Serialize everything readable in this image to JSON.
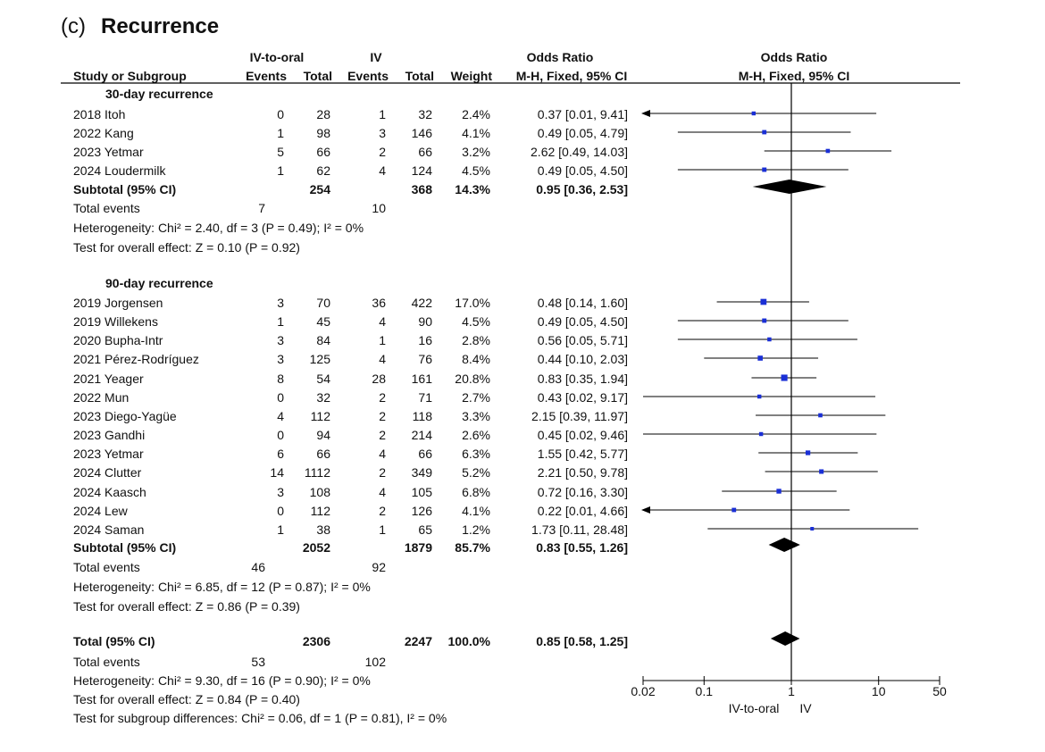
{
  "figure": {
    "panel_label": "(c)",
    "title": "Recurrence"
  },
  "header": {
    "group1": "IV-to-oral",
    "group2": "IV",
    "or_label": "Odds Ratio",
    "or_method": "M-H, Fixed, 95% CI",
    "plot_label": "Odds Ratio",
    "plot_method": "M-H, Fixed, 95% CI",
    "study_col": "Study or Subgroup",
    "events1": "Events",
    "total1": "Total",
    "events2": "Events",
    "total2": "Total",
    "weight": "Weight"
  },
  "subgroups": [
    {
      "name": "30-day recurrence",
      "studies": [
        {
          "study": "2018 Itoh",
          "e1": "0",
          "t1": "28",
          "e2": "1",
          "t2": "32",
          "weight": "2.4%",
          "ci_text": "0.37 [0.01, 9.41]"
        },
        {
          "study": "2022 Kang",
          "e1": "1",
          "t1": "98",
          "e2": "3",
          "t2": "146",
          "weight": "4.1%",
          "ci_text": "0.49 [0.05, 4.79]"
        },
        {
          "study": "2023 Yetmar",
          "e1": "5",
          "t1": "66",
          "e2": "2",
          "t2": "66",
          "weight": "3.2%",
          "ci_text": "2.62 [0.49, 14.03]"
        },
        {
          "study": "2024 Loudermilk",
          "e1": "1",
          "t1": "62",
          "e2": "4",
          "t2": "124",
          "weight": "4.5%",
          "ci_text": "0.49 [0.05, 4.50]"
        }
      ],
      "subtotal": {
        "label": "Subtotal (95% CI)",
        "t1": "254",
        "t2": "368",
        "weight": "14.3%",
        "ci_text": "0.95 [0.36, 2.53]"
      },
      "total_events": {
        "label": "Total events",
        "e1": "7",
        "e2": "10"
      },
      "heterogeneity": "Heterogeneity: Chi² = 2.40, df = 3 (P = 0.49); I² = 0%",
      "overall": "Test for overall effect: Z = 0.10 (P = 0.92)"
    },
    {
      "name": "90-day recurrence",
      "studies": [
        {
          "study": "2019 Jorgensen",
          "e1": "3",
          "t1": "70",
          "e2": "36",
          "t2": "422",
          "weight": "17.0%",
          "ci_text": "0.48 [0.14, 1.60]"
        },
        {
          "study": "2019 Willekens",
          "e1": "1",
          "t1": "45",
          "e2": "4",
          "t2": "90",
          "weight": "4.5%",
          "ci_text": "0.49 [0.05, 4.50]"
        },
        {
          "study": "2020 Bupha-Intr",
          "e1": "3",
          "t1": "84",
          "e2": "1",
          "t2": "16",
          "weight": "2.8%",
          "ci_text": "0.56 [0.05, 5.71]"
        },
        {
          "study": "2021 Pérez-Rodríguez",
          "e1": "3",
          "t1": "125",
          "e2": "4",
          "t2": "76",
          "weight": "8.4%",
          "ci_text": "0.44 [0.10, 2.03]"
        },
        {
          "study": "2021 Yeager",
          "e1": "8",
          "t1": "54",
          "e2": "28",
          "t2": "161",
          "weight": "20.8%",
          "ci_text": "0.83 [0.35, 1.94]"
        },
        {
          "study": "2022 Mun",
          "e1": "0",
          "t1": "32",
          "e2": "2",
          "t2": "71",
          "weight": "2.7%",
          "ci_text": "0.43 [0.02, 9.17]"
        },
        {
          "study": "2023 Diego-Yagüe",
          "e1": "4",
          "t1": "112",
          "e2": "2",
          "t2": "118",
          "weight": "3.3%",
          "ci_text": "2.15 [0.39, 11.97]"
        },
        {
          "study": "2023 Gandhi",
          "e1": "0",
          "t1": "94",
          "e2": "2",
          "t2": "214",
          "weight": "2.6%",
          "ci_text": "0.45 [0.02, 9.46]"
        },
        {
          "study": "2023 Yetmar",
          "e1": "6",
          "t1": "66",
          "e2": "4",
          "t2": "66",
          "weight": "6.3%",
          "ci_text": "1.55 [0.42, 5.77]"
        },
        {
          "study": "2024 Clutter",
          "e1": "14",
          "t1": "1112",
          "e2": "2",
          "t2": "349",
          "weight": "5.2%",
          "ci_text": "2.21 [0.50, 9.78]"
        },
        {
          "study": "2024 Kaasch",
          "e1": "3",
          "t1": "108",
          "e2": "4",
          "t2": "105",
          "weight": "6.8%",
          "ci_text": "0.72 [0.16, 3.30]"
        },
        {
          "study": "2024 Lew",
          "e1": "0",
          "t1": "112",
          "e2": "2",
          "t2": "126",
          "weight": "4.1%",
          "ci_text": "0.22 [0.01, 4.66]"
        },
        {
          "study": "2024 Saman",
          "e1": "1",
          "t1": "38",
          "e2": "1",
          "t2": "65",
          "weight": "1.2%",
          "ci_text": "1.73 [0.11, 28.48]"
        }
      ],
      "subtotal": {
        "label": "Subtotal (95% CI)",
        "t1": "2052",
        "t2": "1879",
        "weight": "85.7%",
        "ci_text": "0.83 [0.55, 1.26]"
      },
      "total_events": {
        "label": "Total events",
        "e1": "46",
        "e2": "92"
      },
      "heterogeneity": "Heterogeneity: Chi² = 6.85, df = 12 (P = 0.87); I² = 0%",
      "overall": "Test for overall effect: Z = 0.86 (P = 0.39)"
    }
  ],
  "total": {
    "label": "Total (95% CI)",
    "t1": "2306",
    "t2": "2247",
    "weight": "100.0%",
    "ci_text": "0.85 [0.58, 1.25]",
    "events_label": "Total events",
    "e1": "53",
    "e2": "102",
    "heterogeneity": "Heterogeneity: Chi² = 9.30, df = 16 (P = 0.90); I² = 0%",
    "overall": "Test for overall effect: Z = 0.84 (P = 0.40)",
    "subgroup_diff": "Test for subgroup differences: Chi² = 0.06, df = 1 (P = 0.81), I² = 0%"
  },
  "colors": {
    "study_marker": "#1a2fd6",
    "diamond": "#000000",
    "line": "#000000"
  },
  "chart_data": {
    "type": "forest",
    "title": "(c) Recurrence",
    "xscale": "log",
    "xlim": [
      0.02,
      50
    ],
    "xticks": [
      0.02,
      0.1,
      1,
      10,
      50
    ],
    "xtick_labels": [
      "0.02",
      "0.1",
      "1",
      "10",
      "50"
    ],
    "xlabel_left": "IV-to-oral",
    "xlabel_right": "IV",
    "reference_line": 1,
    "studies": [
      {
        "label": "2018 Itoh",
        "or": 0.37,
        "lo": 0.01,
        "hi": 9.41,
        "weight": 2.4
      },
      {
        "label": "2022 Kang",
        "or": 0.49,
        "lo": 0.05,
        "hi": 4.79,
        "weight": 4.1
      },
      {
        "label": "2023 Yetmar",
        "or": 2.62,
        "lo": 0.49,
        "hi": 14.03,
        "weight": 3.2
      },
      {
        "label": "2024 Loudermilk",
        "or": 0.49,
        "lo": 0.05,
        "hi": 4.5,
        "weight": 4.5
      },
      {
        "label": "2019 Jorgensen",
        "or": 0.48,
        "lo": 0.14,
        "hi": 1.6,
        "weight": 17.0
      },
      {
        "label": "2019 Willekens",
        "or": 0.49,
        "lo": 0.05,
        "hi": 4.5,
        "weight": 4.5
      },
      {
        "label": "2020 Bupha-Intr",
        "or": 0.56,
        "lo": 0.05,
        "hi": 5.71,
        "weight": 2.8
      },
      {
        "label": "2021 Pérez-Rodríguez",
        "or": 0.44,
        "lo": 0.1,
        "hi": 2.03,
        "weight": 8.4
      },
      {
        "label": "2021 Yeager",
        "or": 0.83,
        "lo": 0.35,
        "hi": 1.94,
        "weight": 20.8
      },
      {
        "label": "2022 Mun",
        "or": 0.43,
        "lo": 0.02,
        "hi": 9.17,
        "weight": 2.7
      },
      {
        "label": "2023 Diego-Yagüe",
        "or": 2.15,
        "lo": 0.39,
        "hi": 11.97,
        "weight": 3.3
      },
      {
        "label": "2023 Gandhi",
        "or": 0.45,
        "lo": 0.02,
        "hi": 9.46,
        "weight": 2.6
      },
      {
        "label": "2023 Yetmar",
        "or": 1.55,
        "lo": 0.42,
        "hi": 5.77,
        "weight": 6.3
      },
      {
        "label": "2024 Clutter",
        "or": 2.21,
        "lo": 0.5,
        "hi": 9.78,
        "weight": 5.2
      },
      {
        "label": "2024 Kaasch",
        "or": 0.72,
        "lo": 0.16,
        "hi": 3.3,
        "weight": 6.8
      },
      {
        "label": "2024 Lew",
        "or": 0.22,
        "lo": 0.01,
        "hi": 4.66,
        "weight": 4.1
      },
      {
        "label": "2024 Saman",
        "or": 1.73,
        "lo": 0.11,
        "hi": 28.48,
        "weight": 1.2
      }
    ],
    "summaries": [
      {
        "label": "Subtotal 30-day",
        "or": 0.95,
        "lo": 0.36,
        "hi": 2.53
      },
      {
        "label": "Subtotal 90-day",
        "or": 0.83,
        "lo": 0.55,
        "hi": 1.26
      },
      {
        "label": "Total",
        "or": 0.85,
        "lo": 0.58,
        "hi": 1.25
      }
    ]
  }
}
